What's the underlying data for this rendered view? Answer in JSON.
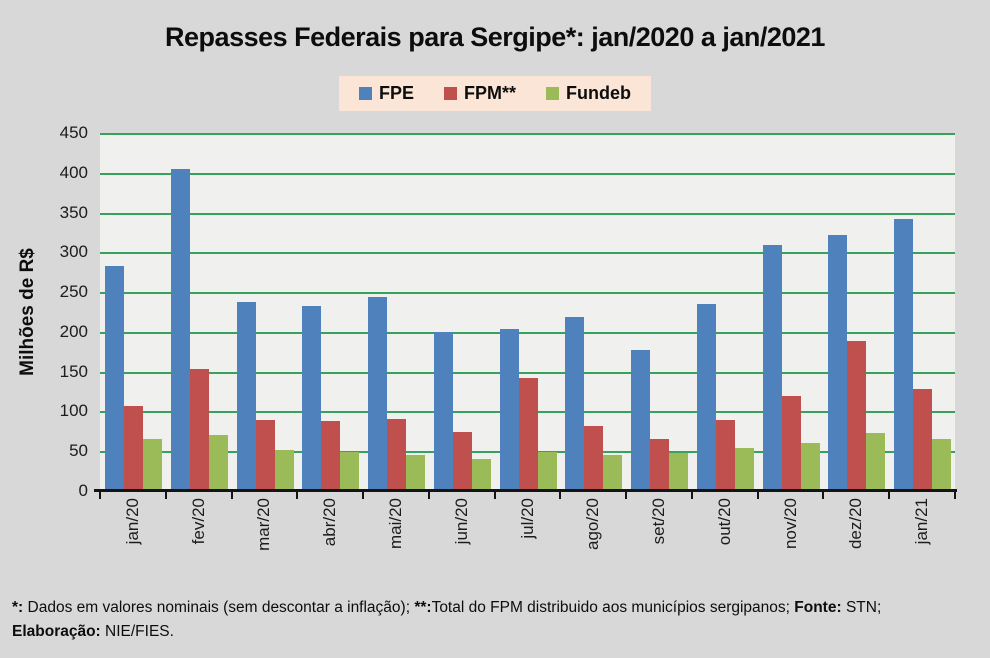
{
  "title": "Repasses Federais para Sergipe*: jan/2020 a jan/2021",
  "colors": {
    "background": "#d8d8d8",
    "plot_background": "#f0f1ef",
    "gridline_green": "#35a35b",
    "legend_background": "#fbe5d6",
    "fpe_blue": "#4f81bd",
    "fpm_red": "#c0504d",
    "fundeb_green": "#9bbb59",
    "axis_black": "#141414"
  },
  "legend": {
    "items": [
      {
        "label": "FPE",
        "color": "#4f81bd",
        "icon": "blue-square-swatch"
      },
      {
        "label": "FPM**",
        "color": "#c0504d",
        "icon": "red-square-swatch"
      },
      {
        "label": "Fundeb",
        "color": "#9bbb59",
        "icon": "green-square-swatch"
      }
    ]
  },
  "chart_data": {
    "type": "bar",
    "title": "Repasses Federais para Sergipe*: jan/2020 a jan/2021",
    "categories": [
      "jan/20",
      "fev/20",
      "mar/20",
      "abr/20",
      "mai/20",
      "jun/20",
      "jul/20",
      "ago/20",
      "set/20",
      "out/20",
      "nov/20",
      "dez/20",
      "jan/21"
    ],
    "series": [
      {
        "name": "FPE",
        "color": "#4f81bd",
        "values": [
          283,
          405,
          238,
          233,
          244,
          200,
          204,
          219,
          177,
          235,
          309,
          322,
          342
        ]
      },
      {
        "name": "FPM**",
        "color": "#c0504d",
        "values": [
          107,
          153,
          89,
          88,
          91,
          74,
          142,
          82,
          66,
          89,
          119,
          189,
          128
        ]
      },
      {
        "name": "Fundeb",
        "color": "#9bbb59",
        "values": [
          65,
          71,
          51,
          49,
          45,
          40,
          49,
          45,
          48,
          54,
          60,
          73,
          65
        ]
      }
    ],
    "xlabel": "",
    "ylabel": "Milhões de R$",
    "ylim": [
      0,
      450
    ],
    "yticks": [
      0,
      50,
      100,
      150,
      200,
      250,
      300,
      350,
      400,
      450
    ],
    "grid": true,
    "gridline_color": "#35a35b",
    "legend_position": "top"
  },
  "footnote": {
    "lines": [
      [
        {
          "text": "*:",
          "bold": true
        },
        {
          "text": " Dados em valores nominais (sem descontar a inflação); ",
          "bold": false
        },
        {
          "text": "**:",
          "bold": true
        },
        {
          "text": "Total do FPM distribuido aos municípios sergipanos; ",
          "bold": false
        },
        {
          "text": "Fonte:",
          "bold": true
        },
        {
          "text": " STN;",
          "bold": false
        }
      ],
      [
        {
          "text": "Elaboração:",
          "bold": true
        },
        {
          "text": " NIE/FIES.",
          "bold": false
        }
      ]
    ]
  }
}
